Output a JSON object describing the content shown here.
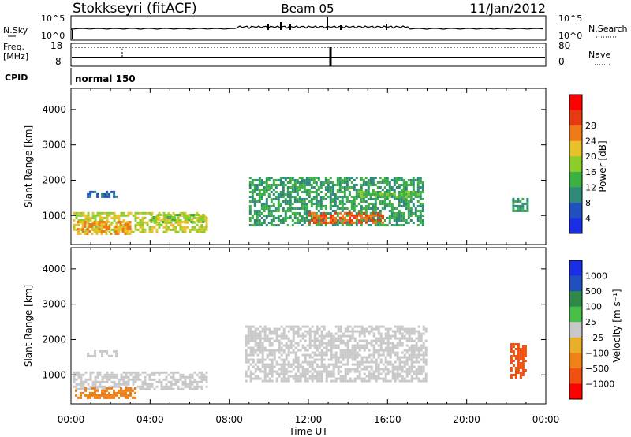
{
  "header": {
    "station": "Stokkseyri (fitACF)",
    "beam": "Beam 05",
    "date": "11/Jan/2012"
  },
  "noise_panel": {
    "left_label": "N.Sky",
    "right_label": "N.Search",
    "left_ticks": [
      "10^5",
      "10^0"
    ],
    "right_ticks": [
      "10^5",
      "10^0"
    ]
  },
  "freq_panel": {
    "left_label_1": "Freq.",
    "left_label_2": "[MHz]",
    "right_label": "Nave",
    "left_ticks": [
      "18",
      "8"
    ],
    "right_ticks": [
      "80",
      "0"
    ]
  },
  "cpid_panel": {
    "label": "CPID",
    "mode": "normal 150"
  },
  "x_axis": {
    "label": "Time UT",
    "ticks": [
      "00:00",
      "04:00",
      "08:00",
      "12:00",
      "16:00",
      "20:00",
      "00:00"
    ]
  },
  "power_panel": {
    "ylabel": "Slant Range [km]",
    "yticks": [
      "1000",
      "2000",
      "3000",
      "4000"
    ],
    "colorbar_label": "Power [dB]",
    "colorbar_ticks": [
      "4",
      "8",
      "12",
      "16",
      "20",
      "24",
      "28"
    ],
    "colors": [
      "#1a2ee6",
      "#2050c0",
      "#2f8a7a",
      "#3cb043",
      "#8ccd2a",
      "#e8c02a",
      "#f07a18",
      "#e83a10",
      "#ff0000"
    ]
  },
  "velocity_panel": {
    "ylabel": "Slant Range [km]",
    "yticks": [
      "1000",
      "2000",
      "3000",
      "4000"
    ],
    "colorbar_label": "Velocity [m s⁻¹]",
    "colorbar_ticks": [
      "1000",
      "500",
      "100",
      "25",
      "−25",
      "−100",
      "−500",
      "−1000"
    ],
    "colors": [
      "#1a2ee6",
      "#2050c0",
      "#2f8a4a",
      "#48c048",
      "#c8c8c8",
      "#e8b028",
      "#f08018",
      "#f05010",
      "#ff0000"
    ]
  },
  "chart_data": [
    {
      "type": "heatmap",
      "title": "Power [dB]",
      "xlabel": "Time UT",
      "ylabel": "Slant Range [km]",
      "xlim": [
        "00:00",
        "24:00"
      ],
      "ylim": [
        180,
        4600
      ],
      "colorbar_range": [
        0,
        32
      ],
      "regions": [
        {
          "t": [
            0.1,
            6.8
          ],
          "r": [
            550,
            1100
          ],
          "level": 20
        },
        {
          "t": [
            0.3,
            3.0
          ],
          "r": [
            500,
            850
          ],
          "level": 24
        },
        {
          "t": [
            4.0,
            6.8
          ],
          "r": [
            800,
            1050
          ],
          "level": 18
        },
        {
          "t": [
            0.8,
            2.3
          ],
          "r": [
            1500,
            1700
          ],
          "level": 8
        },
        {
          "t": [
            9.0,
            17.8
          ],
          "r": [
            700,
            2100
          ],
          "level": 12
        },
        {
          "t": [
            12.0,
            15.8
          ],
          "r": [
            800,
            1100
          ],
          "level": 28
        },
        {
          "t": [
            14.5,
            17.5
          ],
          "r": [
            1500,
            1700
          ],
          "level": 16
        },
        {
          "t": [
            22.3,
            23.1
          ],
          "r": [
            1100,
            1500
          ],
          "level": 12
        }
      ]
    },
    {
      "type": "heatmap",
      "title": "Velocity [m s⁻¹]",
      "xlabel": "Time UT",
      "ylabel": "Slant Range [km]",
      "xlim": [
        "00:00",
        "24:00"
      ],
      "ylim": [
        180,
        4600
      ],
      "colorbar_range": [
        -1000,
        1000
      ],
      "regions": [
        {
          "t": [
            0.1,
            6.8
          ],
          "r": [
            600,
            1100
          ],
          "velocity": 0
        },
        {
          "t": [
            0.2,
            3.2
          ],
          "r": [
            350,
            650
          ],
          "velocity": -300
        },
        {
          "t": [
            0.8,
            2.3
          ],
          "r": [
            1500,
            1700
          ],
          "velocity": 0
        },
        {
          "t": [
            8.8,
            18.0
          ],
          "r": [
            800,
            2400
          ],
          "velocity": 0
        },
        {
          "t": [
            22.2,
            23.0
          ],
          "r": [
            900,
            1900
          ],
          "velocity": -800
        }
      ]
    }
  ]
}
